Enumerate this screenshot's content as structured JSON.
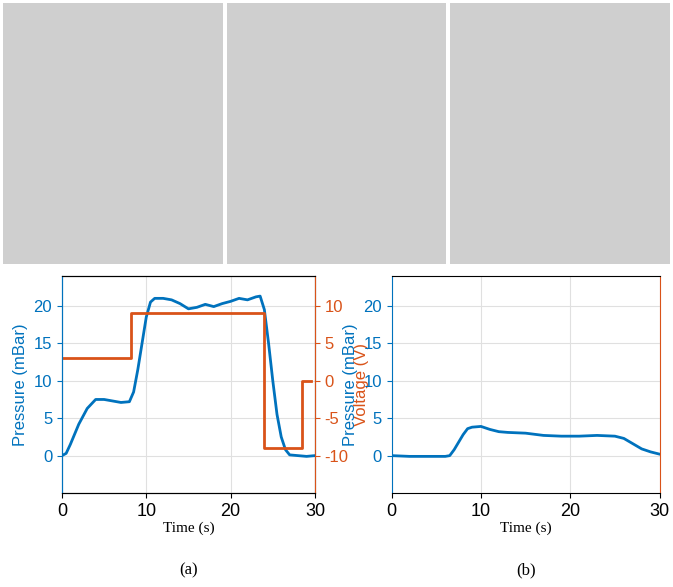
{
  "chart_data": [
    {
      "type": "line",
      "title": "(a)",
      "x_label": "Time (s)",
      "y_label": "Pressure (mBar)",
      "y2_label": "Voltage (V)",
      "xlim": [
        0,
        30
      ],
      "xticks": [
        0,
        10,
        20,
        30
      ],
      "ylim": [
        -5,
        24
      ],
      "yticks": [
        0,
        5,
        10,
        15,
        20
      ],
      "y2lim": [
        -15,
        14
      ],
      "y2ticks": [
        -10,
        -5,
        0,
        5,
        10
      ],
      "grid": true,
      "series": [
        {
          "name": "Pressure (mBar)",
          "color": "#0072BD",
          "x": [
            0,
            0.5,
            1,
            2,
            3,
            4,
            5,
            6,
            7,
            8,
            8.5,
            9,
            9.5,
            10,
            10.5,
            11,
            12,
            13,
            14,
            15,
            16,
            17,
            18,
            19,
            20,
            21,
            22,
            23,
            23.5,
            24,
            24.5,
            25,
            25.5,
            26,
            26.5,
            27,
            28,
            29,
            30
          ],
          "values": [
            0,
            0.3,
            1.5,
            4.2,
            6.3,
            7.5,
            7.5,
            7.3,
            7.1,
            7.2,
            8.5,
            11.5,
            15,
            18.5,
            20.5,
            21,
            21,
            20.8,
            20.3,
            19.6,
            19.8,
            20.2,
            19.9,
            20.3,
            20.6,
            21,
            20.8,
            21.2,
            21.3,
            19.5,
            15,
            10,
            5.5,
            2.5,
            0.8,
            0.1,
            0,
            -0.1,
            0
          ]
        },
        {
          "name": "Voltage (V)",
          "color": "#D95319",
          "axis": "y2",
          "x": [
            0,
            8.2,
            8.2,
            24,
            24,
            28.5,
            28.5,
            29.5
          ],
          "values": [
            3,
            3,
            9,
            9,
            -9,
            -9,
            0,
            0
          ]
        }
      ]
    },
    {
      "type": "line",
      "title": "(b)",
      "x_label": "Time (s)",
      "y_label": "Pressure (mBar)",
      "xlim": [
        0,
        30
      ],
      "xticks": [
        0,
        10,
        20,
        30
      ],
      "ylim": [
        -5,
        24
      ],
      "yticks": [
        0,
        5,
        10,
        15,
        20
      ],
      "grid": true,
      "series": [
        {
          "name": "Pressure (mBar)",
          "color": "#0072BD",
          "x": [
            0,
            2,
            4,
            6,
            6.5,
            7,
            7.5,
            8,
            8.5,
            9,
            10,
            11,
            12,
            13,
            15,
            17,
            19,
            21,
            23,
            25,
            26,
            27,
            28,
            29,
            30
          ],
          "values": [
            0,
            -0.1,
            -0.1,
            -0.1,
            0,
            0.8,
            1.8,
            2.8,
            3.6,
            3.8,
            3.9,
            3.5,
            3.2,
            3.1,
            3.0,
            2.7,
            2.6,
            2.6,
            2.7,
            2.6,
            2.3,
            1.6,
            0.9,
            0.5,
            0.2
          ]
        }
      ]
    }
  ]
}
